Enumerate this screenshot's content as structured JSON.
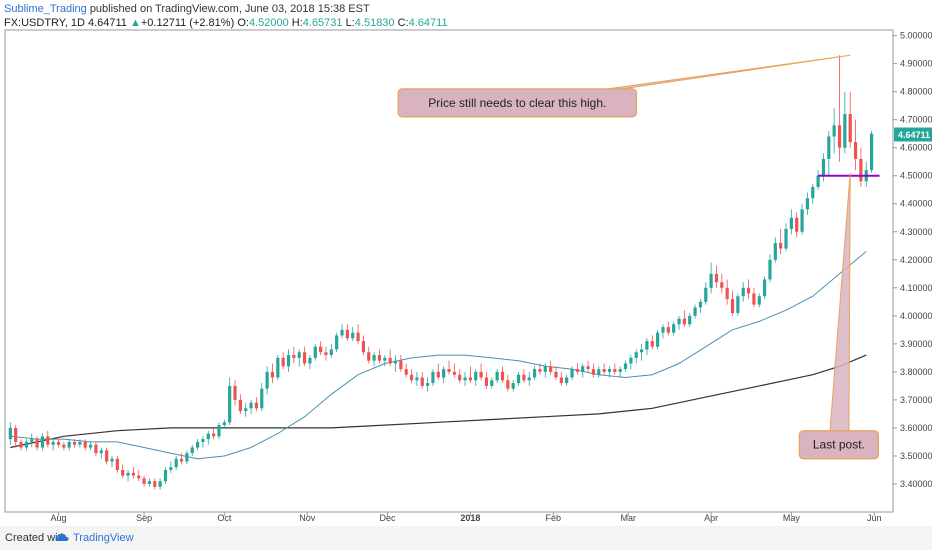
{
  "header": {
    "author": "Sublime_Trading",
    "published": "published on TradingView.com, June 03, 2018 15:38 EST"
  },
  "ticker": {
    "symbol": "FX:USDTRY, 1D",
    "last": "4.64711",
    "arrow": "▲",
    "change": "+0.12711 (+2.81%)",
    "o_label": "O:",
    "o": "4.52000",
    "h_label": "H:",
    "h": "4.65731",
    "l_label": "L:",
    "l": "4.51830",
    "c_label": "C:",
    "c": "4.64711"
  },
  "footer": {
    "created_with": "Created with",
    "brand": "TradingView"
  },
  "colors": {
    "up": "#26a69a",
    "down": "#ef5350",
    "ma_fast": "#4a90b5",
    "ma_slow": "#333333",
    "support": "#9400d3",
    "annotation_fill": "#d9b4c0",
    "annotation_border": "#e8a25a",
    "price_tag": "#26a69a"
  },
  "chart_data": {
    "type": "candlestick",
    "ylim": [
      3.3,
      5.02
    ],
    "y_ticks": [
      "5.00000",
      "4.90000",
      "4.80000",
      "4.70000",
      "4.60000",
      "4.50000",
      "4.40000",
      "4.30000",
      "4.20000",
      "4.10000",
      "4.00000",
      "3.90000",
      "3.80000",
      "3.70000",
      "3.60000",
      "3.50000",
      "3.40000"
    ],
    "x_ticks": [
      {
        "label": "Aug",
        "day": 18
      },
      {
        "label": "Sep",
        "day": 50
      },
      {
        "label": "Oct",
        "day": 80
      },
      {
        "label": "Nov",
        "day": 111
      },
      {
        "label": "Dec",
        "day": 141
      },
      {
        "label": "2018",
        "day": 172
      },
      {
        "label": "Feb",
        "day": 203
      },
      {
        "label": "Mar",
        "day": 231
      },
      {
        "label": "Apr",
        "day": 262
      },
      {
        "label": "May",
        "day": 292
      },
      {
        "label": "Jun",
        "day": 323
      }
    ],
    "last_price_label": "4.64711",
    "support_level": {
      "value": 4.5,
      "from_day": 302,
      "to_day": 325
    },
    "annotations": [
      {
        "text": "Price still needs to clear this high.",
        "target_day": 314,
        "target_price": 4.93,
        "box_day": 145,
        "box_price": 4.76
      },
      {
        "text": "Last post.",
        "target_day": 314,
        "target_price": 4.51,
        "box_day": 295,
        "box_price": 3.54
      }
    ],
    "ma_fast": [
      [
        0,
        3.57
      ],
      [
        10,
        3.56
      ],
      [
        20,
        3.56
      ],
      [
        30,
        3.55
      ],
      [
        40,
        3.55
      ],
      [
        50,
        3.53
      ],
      [
        60,
        3.51
      ],
      [
        70,
        3.49
      ],
      [
        80,
        3.5
      ],
      [
        90,
        3.53
      ],
      [
        100,
        3.58
      ],
      [
        110,
        3.64
      ],
      [
        120,
        3.72
      ],
      [
        130,
        3.79
      ],
      [
        140,
        3.83
      ],
      [
        150,
        3.85
      ],
      [
        160,
        3.86
      ],
      [
        170,
        3.86
      ],
      [
        180,
        3.85
      ],
      [
        190,
        3.84
      ],
      [
        200,
        3.82
      ],
      [
        210,
        3.81
      ],
      [
        220,
        3.79
      ],
      [
        230,
        3.78
      ],
      [
        240,
        3.79
      ],
      [
        250,
        3.83
      ],
      [
        260,
        3.89
      ],
      [
        270,
        3.95
      ],
      [
        280,
        3.98
      ],
      [
        290,
        4.02
      ],
      [
        300,
        4.07
      ],
      [
        310,
        4.15
      ],
      [
        320,
        4.23
      ]
    ],
    "ma_slow": [
      [
        0,
        3.53
      ],
      [
        20,
        3.57
      ],
      [
        40,
        3.59
      ],
      [
        60,
        3.6
      ],
      [
        80,
        3.6
      ],
      [
        100,
        3.6
      ],
      [
        120,
        3.6
      ],
      [
        140,
        3.61
      ],
      [
        160,
        3.62
      ],
      [
        180,
        3.63
      ],
      [
        200,
        3.64
      ],
      [
        220,
        3.65
      ],
      [
        240,
        3.67
      ],
      [
        260,
        3.71
      ],
      [
        280,
        3.75
      ],
      [
        300,
        3.79
      ],
      [
        310,
        3.82
      ],
      [
        320,
        3.86
      ]
    ],
    "candles_ohlc": [
      [
        0,
        3.56,
        3.62,
        3.54,
        3.6
      ],
      [
        2,
        3.6,
        3.61,
        3.53,
        3.55
      ],
      [
        4,
        3.55,
        3.56,
        3.52,
        3.53
      ],
      [
        6,
        3.53,
        3.56,
        3.52,
        3.55
      ],
      [
        8,
        3.55,
        3.58,
        3.53,
        3.56
      ],
      [
        10,
        3.56,
        3.57,
        3.52,
        3.53
      ],
      [
        12,
        3.53,
        3.58,
        3.52,
        3.57
      ],
      [
        14,
        3.57,
        3.59,
        3.53,
        3.54
      ],
      [
        16,
        3.54,
        3.56,
        3.52,
        3.55
      ],
      [
        18,
        3.55,
        3.56,
        3.53,
        3.54
      ],
      [
        20,
        3.54,
        3.55,
        3.52,
        3.53
      ],
      [
        22,
        3.53,
        3.56,
        3.52,
        3.55
      ],
      [
        24,
        3.55,
        3.56,
        3.53,
        3.54
      ],
      [
        26,
        3.54,
        3.56,
        3.53,
        3.55
      ],
      [
        28,
        3.55,
        3.56,
        3.52,
        3.53
      ],
      [
        30,
        3.53,
        3.55,
        3.52,
        3.54
      ],
      [
        32,
        3.54,
        3.55,
        3.5,
        3.51
      ],
      [
        34,
        3.51,
        3.53,
        3.49,
        3.52
      ],
      [
        36,
        3.52,
        3.53,
        3.47,
        3.48
      ],
      [
        38,
        3.48,
        3.5,
        3.46,
        3.49
      ],
      [
        40,
        3.49,
        3.5,
        3.44,
        3.45
      ],
      [
        42,
        3.45,
        3.47,
        3.42,
        3.43
      ],
      [
        44,
        3.43,
        3.45,
        3.41,
        3.44
      ],
      [
        46,
        3.44,
        3.46,
        3.42,
        3.43
      ],
      [
        48,
        3.43,
        3.45,
        3.41,
        3.42
      ],
      [
        50,
        3.42,
        3.43,
        3.39,
        3.4
      ],
      [
        52,
        3.4,
        3.42,
        3.39,
        3.41
      ],
      [
        54,
        3.41,
        3.42,
        3.38,
        3.39
      ],
      [
        56,
        3.39,
        3.42,
        3.38,
        3.41
      ],
      [
        58,
        3.41,
        3.46,
        3.4,
        3.45
      ],
      [
        60,
        3.45,
        3.48,
        3.44,
        3.46
      ],
      [
        62,
        3.46,
        3.5,
        3.45,
        3.49
      ],
      [
        64,
        3.49,
        3.51,
        3.47,
        3.48
      ],
      [
        66,
        3.48,
        3.52,
        3.47,
        3.51
      ],
      [
        68,
        3.51,
        3.54,
        3.5,
        3.53
      ],
      [
        70,
        3.53,
        3.56,
        3.52,
        3.55
      ],
      [
        72,
        3.55,
        3.57,
        3.53,
        3.56
      ],
      [
        74,
        3.56,
        3.59,
        3.54,
        3.58
      ],
      [
        76,
        3.58,
        3.6,
        3.56,
        3.57
      ],
      [
        78,
        3.57,
        3.62,
        3.56,
        3.61
      ],
      [
        80,
        3.61,
        3.63,
        3.6,
        3.62
      ],
      [
        82,
        3.62,
        3.78,
        3.61,
        3.75
      ],
      [
        84,
        3.75,
        3.77,
        3.68,
        3.7
      ],
      [
        86,
        3.7,
        3.72,
        3.65,
        3.66
      ],
      [
        88,
        3.66,
        3.69,
        3.64,
        3.67
      ],
      [
        90,
        3.67,
        3.7,
        3.65,
        3.69
      ],
      [
        92,
        3.69,
        3.71,
        3.66,
        3.67
      ],
      [
        94,
        3.67,
        3.76,
        3.66,
        3.74
      ],
      [
        96,
        3.74,
        3.82,
        3.72,
        3.8
      ],
      [
        98,
        3.8,
        3.83,
        3.76,
        3.78
      ],
      [
        100,
        3.78,
        3.86,
        3.77,
        3.85
      ],
      [
        102,
        3.85,
        3.87,
        3.81,
        3.82
      ],
      [
        104,
        3.82,
        3.88,
        3.8,
        3.86
      ],
      [
        106,
        3.86,
        3.89,
        3.83,
        3.85
      ],
      [
        108,
        3.85,
        3.88,
        3.82,
        3.87
      ],
      [
        110,
        3.87,
        3.89,
        3.82,
        3.83
      ],
      [
        112,
        3.83,
        3.86,
        3.81,
        3.85
      ],
      [
        114,
        3.85,
        3.9,
        3.84,
        3.89
      ],
      [
        116,
        3.89,
        3.91,
        3.86,
        3.87
      ],
      [
        118,
        3.87,
        3.89,
        3.84,
        3.86
      ],
      [
        120,
        3.86,
        3.9,
        3.85,
        3.88
      ],
      [
        122,
        3.88,
        3.94,
        3.87,
        3.93
      ],
      [
        124,
        3.93,
        3.97,
        3.92,
        3.95
      ],
      [
        126,
        3.95,
        3.97,
        3.91,
        3.92
      ],
      [
        128,
        3.92,
        3.96,
        3.91,
        3.94
      ],
      [
        130,
        3.94,
        3.97,
        3.9,
        3.91
      ],
      [
        132,
        3.91,
        3.93,
        3.86,
        3.87
      ],
      [
        134,
        3.87,
        3.89,
        3.83,
        3.84
      ],
      [
        136,
        3.84,
        3.87,
        3.82,
        3.86
      ],
      [
        138,
        3.86,
        3.88,
        3.83,
        3.84
      ],
      [
        140,
        3.84,
        3.86,
        3.82,
        3.85
      ],
      [
        142,
        3.85,
        3.88,
        3.82,
        3.83
      ],
      [
        144,
        3.83,
        3.86,
        3.8,
        3.84
      ],
      [
        146,
        3.84,
        3.86,
        3.8,
        3.81
      ],
      [
        148,
        3.81,
        3.83,
        3.78,
        3.79
      ],
      [
        150,
        3.79,
        3.81,
        3.76,
        3.77
      ],
      [
        152,
        3.77,
        3.8,
        3.75,
        3.78
      ],
      [
        154,
        3.78,
        3.8,
        3.74,
        3.75
      ],
      [
        156,
        3.75,
        3.78,
        3.73,
        3.76
      ],
      [
        158,
        3.76,
        3.81,
        3.75,
        3.8
      ],
      [
        160,
        3.8,
        3.83,
        3.77,
        3.78
      ],
      [
        162,
        3.78,
        3.82,
        3.76,
        3.81
      ],
      [
        164,
        3.81,
        3.84,
        3.79,
        3.8
      ],
      [
        166,
        3.8,
        3.83,
        3.78,
        3.79
      ],
      [
        168,
        3.79,
        3.81,
        3.76,
        3.77
      ],
      [
        170,
        3.77,
        3.8,
        3.75,
        3.78
      ],
      [
        172,
        3.78,
        3.82,
        3.76,
        3.77
      ],
      [
        174,
        3.77,
        3.81,
        3.75,
        3.8
      ],
      [
        176,
        3.8,
        3.83,
        3.77,
        3.78
      ],
      [
        178,
        3.78,
        3.8,
        3.74,
        3.75
      ],
      [
        180,
        3.75,
        3.78,
        3.74,
        3.77
      ],
      [
        182,
        3.77,
        3.81,
        3.76,
        3.8
      ],
      [
        184,
        3.8,
        3.82,
        3.76,
        3.77
      ],
      [
        186,
        3.77,
        3.79,
        3.73,
        3.74
      ],
      [
        188,
        3.74,
        3.77,
        3.73,
        3.76
      ],
      [
        190,
        3.76,
        3.8,
        3.75,
        3.79
      ],
      [
        192,
        3.79,
        3.81,
        3.76,
        3.77
      ],
      [
        194,
        3.77,
        3.8,
        3.75,
        3.78
      ],
      [
        196,
        3.78,
        3.82,
        3.77,
        3.81
      ],
      [
        198,
        3.81,
        3.83,
        3.79,
        3.8
      ],
      [
        200,
        3.8,
        3.83,
        3.78,
        3.82
      ],
      [
        202,
        3.82,
        3.84,
        3.79,
        3.8
      ],
      [
        204,
        3.8,
        3.82,
        3.77,
        3.78
      ],
      [
        206,
        3.78,
        3.8,
        3.75,
        3.76
      ],
      [
        208,
        3.76,
        3.79,
        3.75,
        3.78
      ],
      [
        210,
        3.78,
        3.82,
        3.77,
        3.81
      ],
      [
        212,
        3.81,
        3.83,
        3.79,
        3.8
      ],
      [
        214,
        3.8,
        3.83,
        3.78,
        3.82
      ],
      [
        216,
        3.82,
        3.84,
        3.8,
        3.81
      ],
      [
        218,
        3.81,
        3.83,
        3.78,
        3.79
      ],
      [
        220,
        3.79,
        3.82,
        3.78,
        3.81
      ],
      [
        222,
        3.81,
        3.83,
        3.79,
        3.8
      ],
      [
        224,
        3.8,
        3.82,
        3.78,
        3.81
      ],
      [
        226,
        3.81,
        3.83,
        3.79,
        3.8
      ],
      [
        228,
        3.8,
        3.82,
        3.78,
        3.81
      ],
      [
        230,
        3.81,
        3.84,
        3.8,
        3.83
      ],
      [
        232,
        3.83,
        3.86,
        3.81,
        3.85
      ],
      [
        234,
        3.85,
        3.88,
        3.83,
        3.87
      ],
      [
        236,
        3.87,
        3.9,
        3.84,
        3.88
      ],
      [
        238,
        3.88,
        3.92,
        3.86,
        3.91
      ],
      [
        240,
        3.91,
        3.93,
        3.88,
        3.89
      ],
      [
        242,
        3.89,
        3.95,
        3.88,
        3.94
      ],
      [
        244,
        3.94,
        3.97,
        3.92,
        3.96
      ],
      [
        246,
        3.96,
        3.98,
        3.93,
        3.94
      ],
      [
        248,
        3.94,
        3.98,
        3.93,
        3.97
      ],
      [
        250,
        3.97,
        4.0,
        3.95,
        3.99
      ],
      [
        252,
        3.99,
        4.02,
        3.96,
        3.97
      ],
      [
        254,
        3.97,
        4.01,
        3.96,
        4.0
      ],
      [
        256,
        4.0,
        4.04,
        3.99,
        4.03
      ],
      [
        258,
        4.03,
        4.06,
        4.01,
        4.05
      ],
      [
        260,
        4.05,
        4.12,
        4.04,
        4.1
      ],
      [
        262,
        4.1,
        4.19,
        4.08,
        4.15
      ],
      [
        264,
        4.15,
        4.18,
        4.1,
        4.12
      ],
      [
        266,
        4.12,
        4.15,
        4.08,
        4.1
      ],
      [
        268,
        4.1,
        4.13,
        4.04,
        4.06
      ],
      [
        270,
        4.06,
        4.09,
        4.0,
        4.01
      ],
      [
        272,
        4.01,
        4.08,
        4.0,
        4.07
      ],
      [
        274,
        4.07,
        4.12,
        4.05,
        4.1
      ],
      [
        276,
        4.1,
        4.13,
        4.06,
        4.08
      ],
      [
        278,
        4.08,
        4.1,
        4.03,
        4.04
      ],
      [
        280,
        4.04,
        4.08,
        4.03,
        4.07
      ],
      [
        282,
        4.07,
        4.14,
        4.06,
        4.13
      ],
      [
        284,
        4.13,
        4.22,
        4.12,
        4.2
      ],
      [
        286,
        4.2,
        4.28,
        4.19,
        4.26
      ],
      [
        288,
        4.26,
        4.31,
        4.22,
        4.24
      ],
      [
        290,
        4.24,
        4.33,
        4.23,
        4.31
      ],
      [
        292,
        4.31,
        4.38,
        4.29,
        4.35
      ],
      [
        294,
        4.35,
        4.37,
        4.28,
        4.3
      ],
      [
        296,
        4.3,
        4.4,
        4.29,
        4.38
      ],
      [
        298,
        4.38,
        4.44,
        4.36,
        4.42
      ],
      [
        300,
        4.42,
        4.47,
        4.4,
        4.46
      ],
      [
        302,
        4.46,
        4.52,
        4.45,
        4.5
      ],
      [
        304,
        4.5,
        4.58,
        4.48,
        4.56
      ],
      [
        306,
        4.56,
        4.66,
        4.5,
        4.64
      ],
      [
        308,
        4.64,
        4.74,
        4.58,
        4.68
      ],
      [
        310,
        4.68,
        4.93,
        4.55,
        4.6
      ],
      [
        312,
        4.6,
        4.8,
        4.58,
        4.72
      ],
      [
        314,
        4.72,
        4.8,
        4.6,
        4.62
      ],
      [
        316,
        4.62,
        4.7,
        4.52,
        4.56
      ],
      [
        318,
        4.56,
        4.6,
        4.46,
        4.48
      ],
      [
        320,
        4.48,
        4.55,
        4.46,
        4.52
      ],
      [
        322,
        4.52,
        4.66,
        4.51,
        4.65
      ]
    ]
  }
}
